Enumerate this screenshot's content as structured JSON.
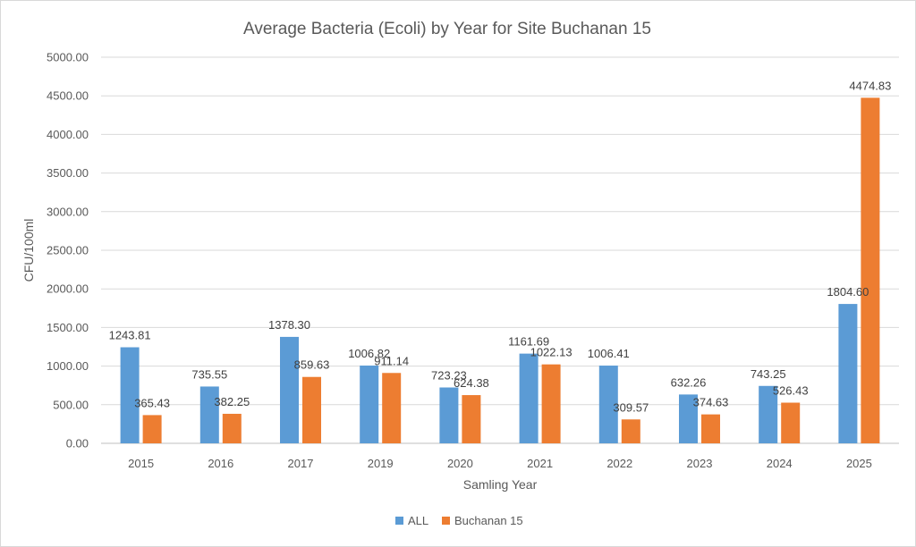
{
  "chart_data": {
    "type": "bar",
    "title": "Average Bacteria (Ecoli) by Year for Site Buchanan 15",
    "xlabel": "Samling Year",
    "ylabel": "CFU/100ml",
    "ylim": [
      0,
      5000
    ],
    "yticks": [
      "0.00",
      "500.00",
      "1000.00",
      "1500.00",
      "2000.00",
      "2500.00",
      "3000.00",
      "3500.00",
      "4000.00",
      "4500.00",
      "5000.00"
    ],
    "grid": true,
    "legend_position": "bottom",
    "categories": [
      "2015",
      "2016",
      "2017",
      "2019",
      "2020",
      "2021",
      "2022",
      "2023",
      "2024",
      "2025"
    ],
    "series": [
      {
        "name": "ALL",
        "color": "#5b9bd5",
        "values": [
          1243.81,
          735.55,
          1378.3,
          1006.82,
          723.23,
          1161.69,
          1006.41,
          632.26,
          743.25,
          1804.6
        ],
        "labels": [
          "1243.81",
          "735.55",
          "1378.30",
          "1006.82",
          "723.23",
          "1161.69",
          "1006.41",
          "632.26",
          "743.25",
          "1804.60"
        ]
      },
      {
        "name": "Buchanan 15",
        "color": "#ed7d31",
        "values": [
          365.43,
          382.25,
          859.63,
          911.14,
          624.38,
          1022.13,
          309.57,
          374.63,
          526.43,
          4474.83
        ],
        "labels": [
          "365.43",
          "382.25",
          "859.63",
          "911.14",
          "624.38",
          "1022.13",
          "309.57",
          "374.63",
          "526.43",
          "4474.83"
        ]
      }
    ]
  }
}
